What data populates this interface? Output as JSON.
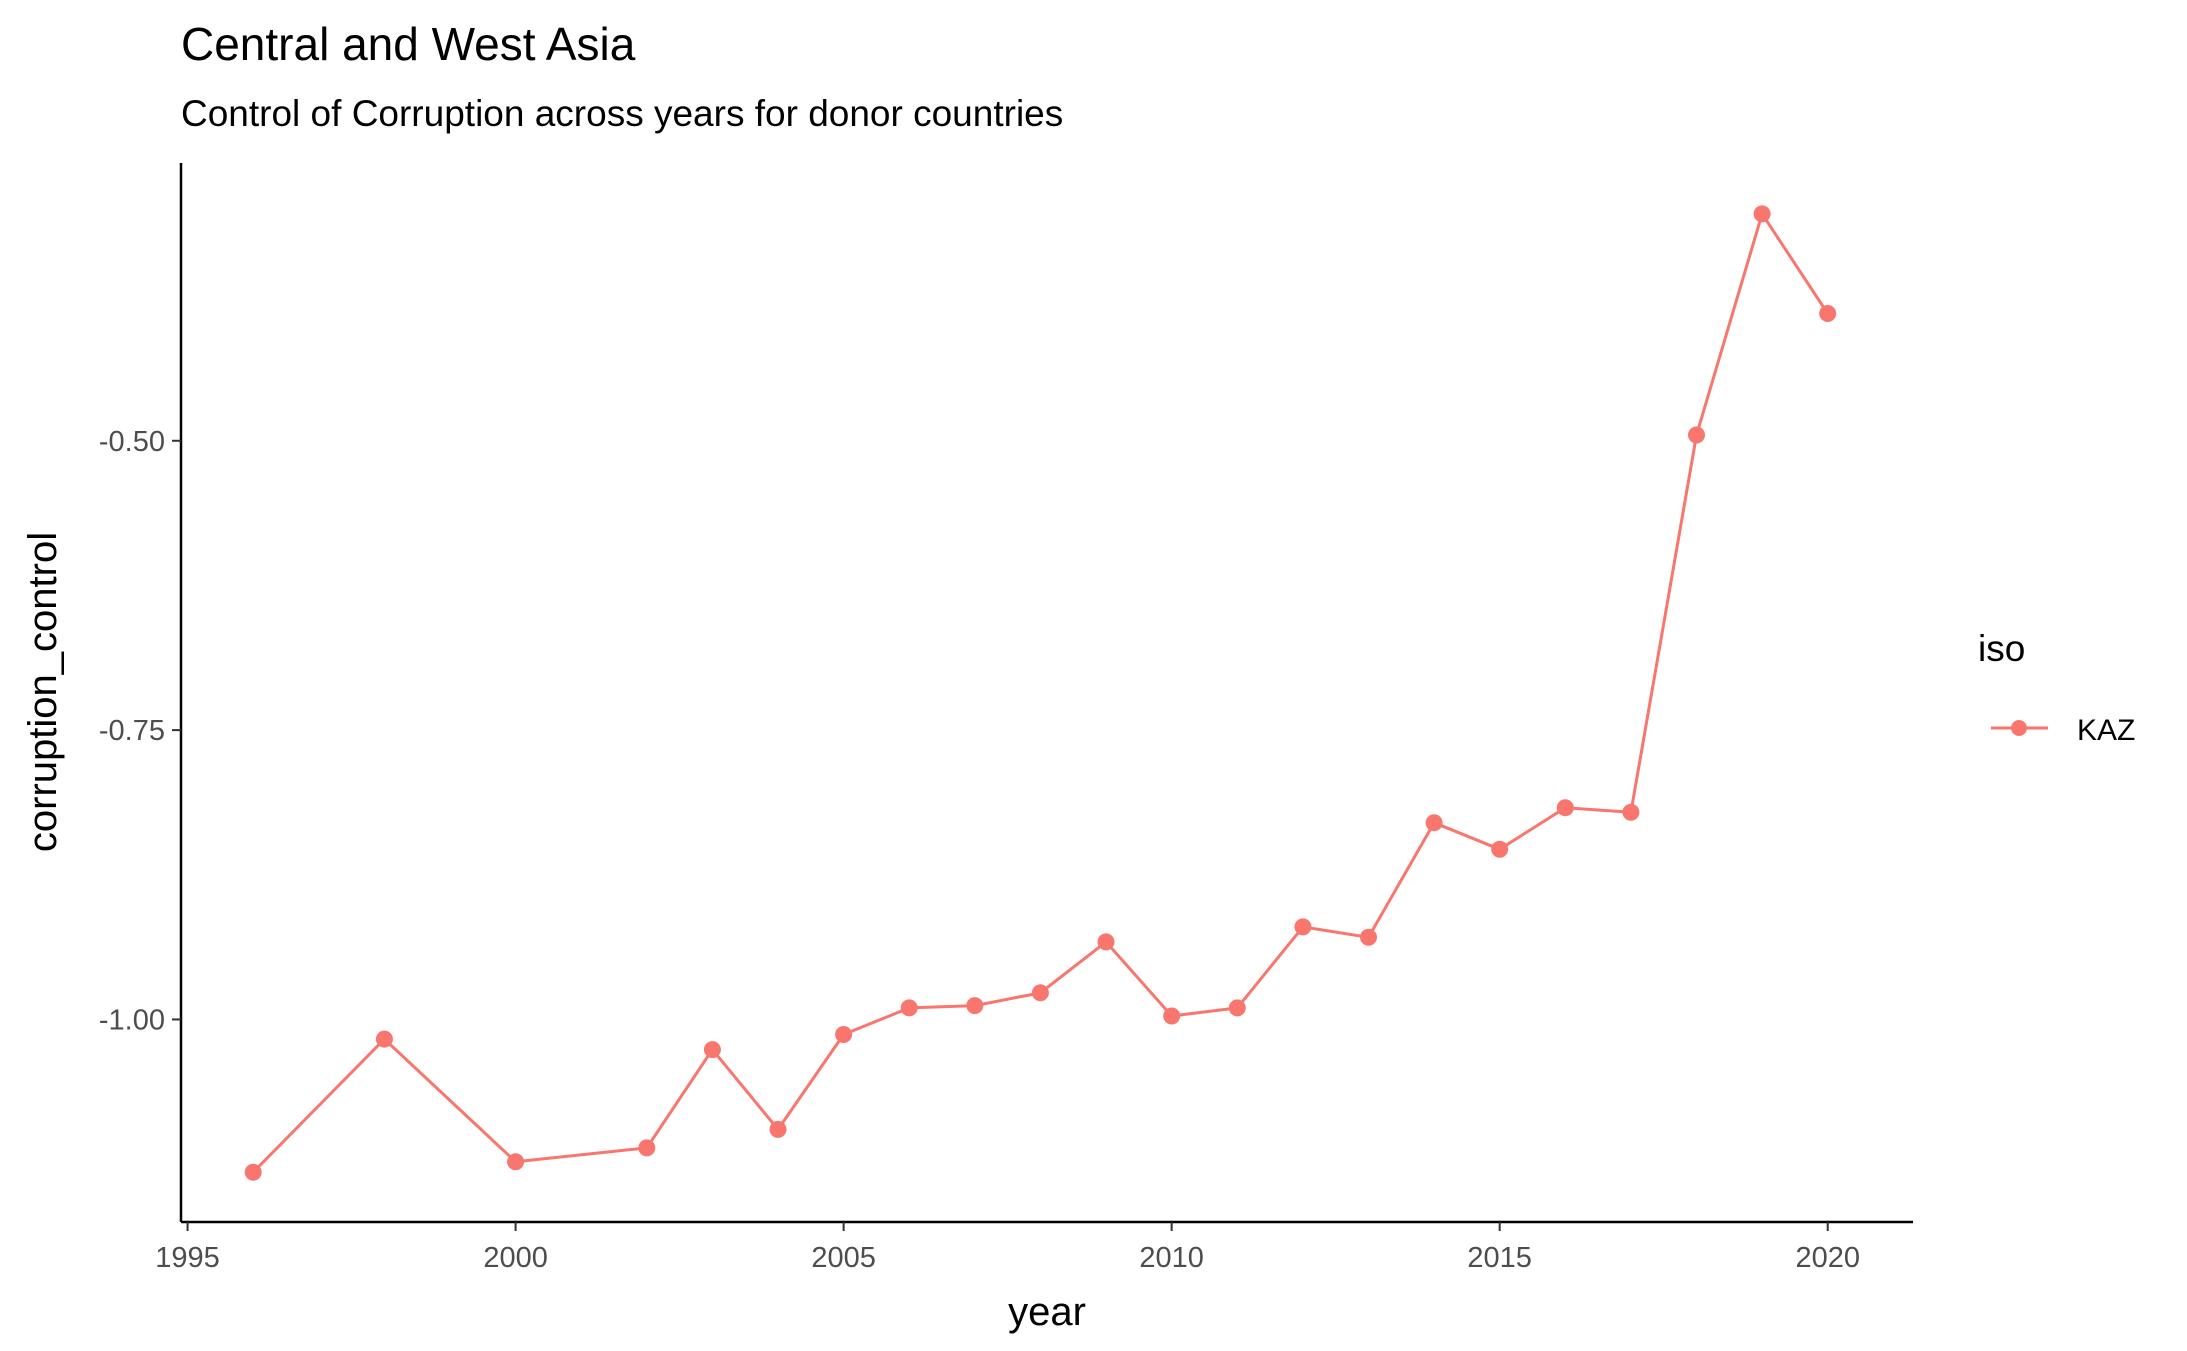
{
  "chart_data": {
    "type": "line",
    "title": "Central and West Asia",
    "subtitle": "Control of Corruption across years for donor countries",
    "xlabel": "year",
    "ylabel": "corruption_control",
    "xlim": [
      1994.9,
      2021.3
    ],
    "ylim": [
      -1.175,
      -0.26
    ],
    "x_ticks": [
      1995,
      2000,
      2005,
      2010,
      2015,
      2020
    ],
    "y_ticks": [
      -1.0,
      -0.75,
      -0.5
    ],
    "y_tick_labels": [
      "-1.00",
      "-0.75",
      "-0.50"
    ],
    "grid": false,
    "legend": {
      "title": "iso",
      "placement": "right"
    },
    "series": [
      {
        "name": "KAZ",
        "color": "#F8766D",
        "x": [
          1996,
          1998,
          2000,
          2002,
          2003,
          2004,
          2005,
          2006,
          2007,
          2008,
          2009,
          2010,
          2011,
          2012,
          2013,
          2014,
          2015,
          2016,
          2017,
          2018,
          2019,
          2020
        ],
        "y": [
          -1.132,
          -1.017,
          -1.123,
          -1.111,
          -1.026,
          -1.095,
          -1.013,
          -0.99,
          -0.988,
          -0.977,
          -0.933,
          -0.997,
          -0.99,
          -0.92,
          -0.929,
          -0.83,
          -0.853,
          -0.817,
          -0.821,
          -0.495,
          -0.304,
          -0.39
        ]
      }
    ]
  }
}
